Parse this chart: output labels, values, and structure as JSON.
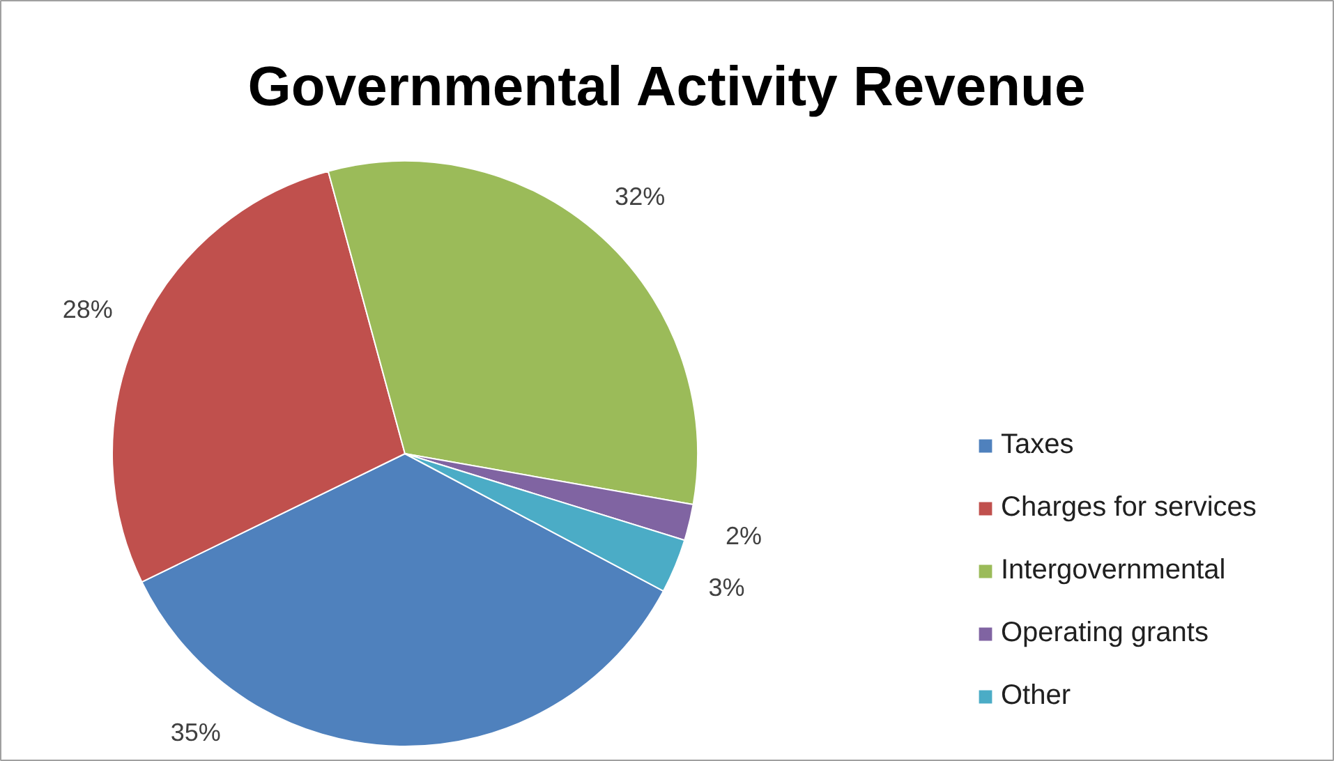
{
  "chart_data": {
    "type": "pie",
    "title": "Governmental Activity Revenue",
    "categories": [
      "Taxes",
      "Charges for services",
      "Intergovernmental",
      "Operating grants",
      "Other"
    ],
    "values": [
      35,
      28,
      32,
      2,
      3
    ],
    "colors": [
      "#4f81bd",
      "#c0504d",
      "#9bbb59",
      "#8064a2",
      "#4bacc6"
    ],
    "value_labels": [
      "35%",
      "28%",
      "32%",
      "2%",
      "3%"
    ],
    "legend": "right"
  }
}
